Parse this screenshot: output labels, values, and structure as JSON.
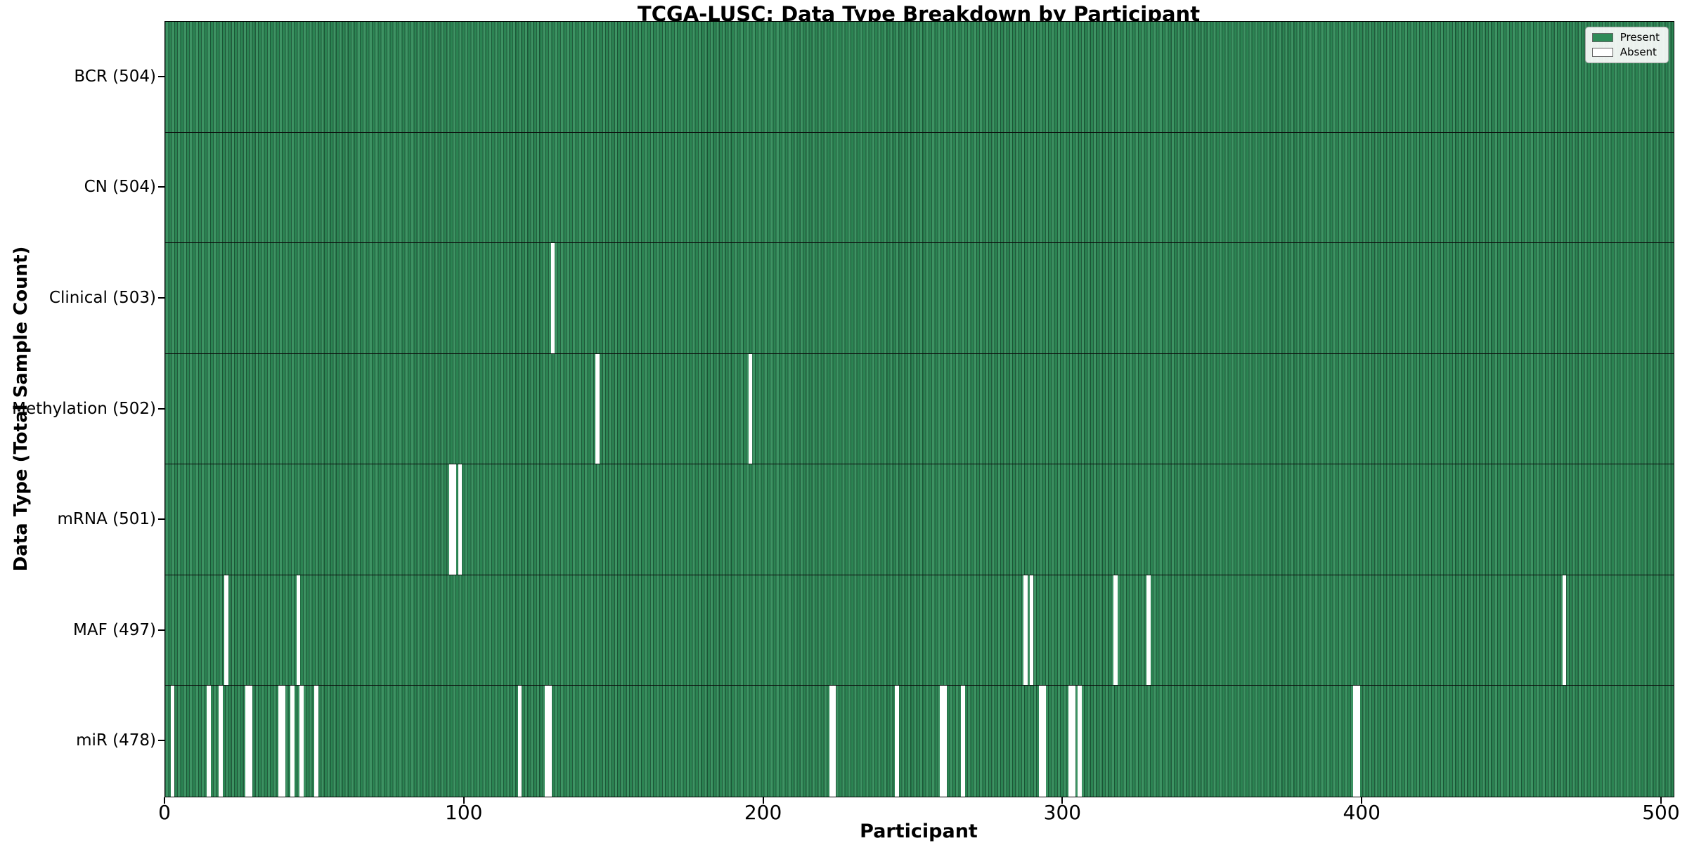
{
  "chart_data": {
    "type": "heatmap",
    "title": "TCGA-LUSC: Data Type Breakdown by Participant",
    "xlabel": "Participant",
    "ylabel": "Data Type (Total Sample Count)",
    "total_participants": 504,
    "x_range": [
      0,
      504
    ],
    "x_ticks": [
      0,
      100,
      200,
      300,
      400,
      500
    ],
    "grid": false,
    "legend": {
      "position": "upper right",
      "entries": [
        {
          "label": "Present",
          "color": "#2e8b57"
        },
        {
          "label": "Absent",
          "color": "#ffffff"
        }
      ]
    },
    "colors": {
      "present": "#2e8b57",
      "absent": "#ffffff",
      "bar_edge": "#0c2c1c",
      "row_separator": "#0a0a0a",
      "plot_border": "#000000",
      "background": "#ffffff"
    },
    "rows": [
      {
        "name": "BCR",
        "label": "BCR (504)",
        "present_count": 504,
        "absent_count": 0,
        "absent_runs": []
      },
      {
        "name": "CN",
        "label": "CN (504)",
        "present_count": 504,
        "absent_count": 0,
        "absent_runs": []
      },
      {
        "name": "Clinical",
        "label": "Clinical (503)",
        "present_count": 503,
        "absent_count": 1,
        "absent_runs": [
          [
            129,
            1
          ]
        ]
      },
      {
        "name": "Methylation",
        "label": "Methylation (502)",
        "present_count": 502,
        "absent_count": 2,
        "absent_runs": [
          [
            144,
            1
          ],
          [
            195,
            1
          ]
        ]
      },
      {
        "name": "mRNA",
        "label": "mRNA (501)",
        "present_count": 501,
        "absent_count": 3,
        "absent_runs": [
          [
            95,
            2
          ],
          [
            98,
            1
          ]
        ]
      },
      {
        "name": "MAF",
        "label": "MAF (497)",
        "present_count": 497,
        "absent_count": 7,
        "absent_runs": [
          [
            20,
            1
          ],
          [
            44,
            1
          ],
          [
            287,
            1
          ],
          [
            289,
            1
          ],
          [
            317,
            1
          ],
          [
            328,
            1
          ],
          [
            467,
            1
          ]
        ]
      },
      {
        "name": "miR",
        "label": "miR (478)",
        "present_count": 478,
        "absent_count": 26,
        "absent_runs": [
          [
            2,
            1
          ],
          [
            14,
            1
          ],
          [
            18,
            1
          ],
          [
            27,
            2
          ],
          [
            38,
            2
          ],
          [
            42,
            1
          ],
          [
            45,
            1
          ],
          [
            50,
            1
          ],
          [
            118,
            1
          ],
          [
            127,
            2
          ],
          [
            222,
            2
          ],
          [
            244,
            1
          ],
          [
            259,
            2
          ],
          [
            266,
            1
          ],
          [
            292,
            2
          ],
          [
            302,
            2
          ],
          [
            305,
            1
          ],
          [
            397,
            2
          ]
        ]
      }
    ]
  }
}
